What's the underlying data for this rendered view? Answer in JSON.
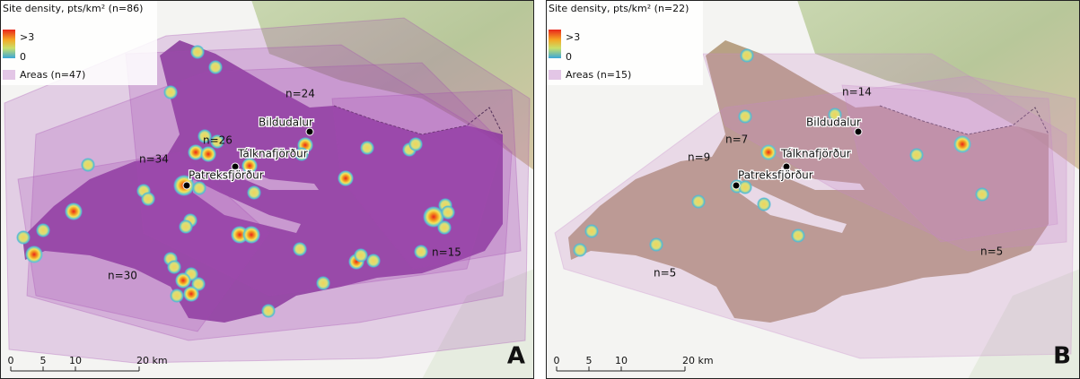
{
  "panels": [
    {
      "legend": {
        "title": "Site density, pts/km² (n=86)",
        "high": ">3",
        "low": "0",
        "areas": "Areas (n=47)"
      },
      "area_labels": [
        "n=24",
        "n=26",
        "n=34",
        "n=30",
        "n=15"
      ],
      "towns": [
        "Bildudalur",
        "Tálknafjörður",
        "Patreksfjörður"
      ],
      "scale": [
        "0",
        "5",
        "10",
        "20 km"
      ],
      "letter": "A"
    },
    {
      "legend": {
        "title": "Site density, pts/km² (n=22)",
        "high": ">3",
        "low": "0",
        "areas": "Areas (n=15)"
      },
      "area_labels": [
        "n=14",
        "n=7",
        "n=9",
        "n=5",
        "n=5"
      ],
      "towns": [
        "Bildudalur",
        "Tálknafjörður",
        "Patreksfjörður"
      ],
      "scale": [
        "0",
        "5",
        "10",
        "20 km"
      ],
      "letter": "B"
    }
  ]
}
